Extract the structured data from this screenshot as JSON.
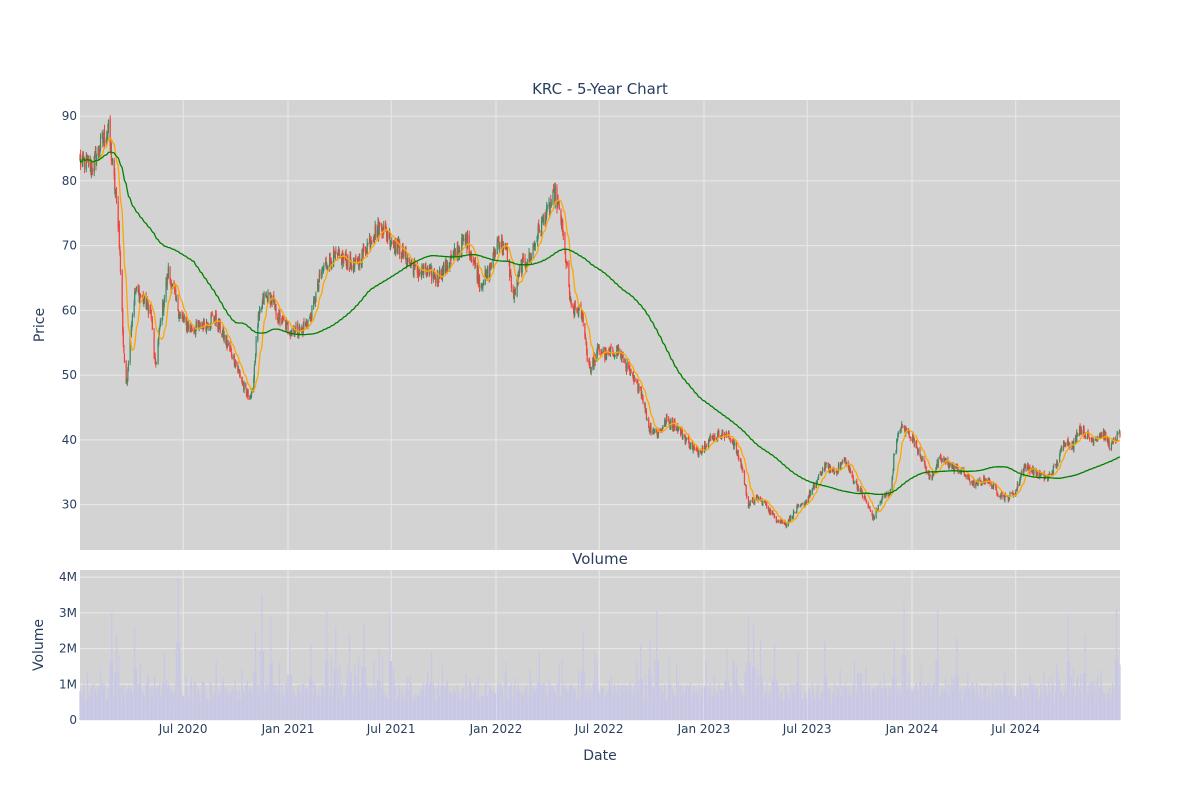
{
  "colors": {
    "plot_bg": "#d3d3d3",
    "grid": "#e9e9e9",
    "up": "#3d8a62",
    "down": "#f0453a",
    "ma_short": "#ffa500",
    "ma_long": "#008000",
    "volume": "#c8c8e6",
    "text": "#2a3f5f"
  },
  "chart_data": [
    {
      "type": "candlestick",
      "title": "KRC - 5-Year Chart",
      "xlabel": "",
      "ylabel": "Price",
      "ylim": [
        23,
        92.5
      ],
      "yticks": [
        30,
        40,
        50,
        60,
        70,
        80,
        90
      ],
      "grid": true,
      "legend": "none",
      "series": [
        {
          "type": "candlestick",
          "close_anchors": [
            [
              "2020-01-02",
              83.0
            ],
            [
              "2020-01-25",
              82.5
            ],
            [
              "2020-02-10",
              86.0
            ],
            [
              "2020-02-21",
              88.0
            ],
            [
              "2020-03-02",
              80.0
            ],
            [
              "2020-03-10",
              73.0
            ],
            [
              "2020-03-18",
              55.0
            ],
            [
              "2020-03-23",
              48.0
            ],
            [
              "2020-04-01",
              58.0
            ],
            [
              "2020-04-08",
              63.0
            ],
            [
              "2020-04-20",
              62.0
            ],
            [
              "2020-05-05",
              60.0
            ],
            [
              "2020-05-13",
              51.0
            ],
            [
              "2020-05-22",
              58.0
            ],
            [
              "2020-06-05",
              66.0
            ],
            [
              "2020-06-26",
              59.0
            ],
            [
              "2020-07-15",
              57.0
            ],
            [
              "2020-08-10",
              58.0
            ],
            [
              "2020-08-25",
              59.0
            ],
            [
              "2020-09-15",
              55.0
            ],
            [
              "2020-10-01",
              52.0
            ],
            [
              "2020-10-20",
              47.0
            ],
            [
              "2020-10-30",
              47.0
            ],
            [
              "2020-11-09",
              58.0
            ],
            [
              "2020-11-20",
              62.0
            ],
            [
              "2020-12-01",
              62.0
            ],
            [
              "2020-12-15",
              59.0
            ],
            [
              "2021-01-04",
              57.0
            ],
            [
              "2021-01-25",
              57.0
            ],
            [
              "2021-02-10",
              59.0
            ],
            [
              "2021-03-01",
              66.0
            ],
            [
              "2021-03-15",
              68.0
            ],
            [
              "2021-04-01",
              68.0
            ],
            [
              "2021-05-01",
              67.0
            ],
            [
              "2021-06-01",
              72.0
            ],
            [
              "2021-06-15",
              73.0
            ],
            [
              "2021-07-01",
              71.0
            ],
            [
              "2021-07-20",
              69.0
            ],
            [
              "2021-08-15",
              66.0
            ],
            [
              "2021-09-01",
              66.0
            ],
            [
              "2021-09-20",
              65.0
            ],
            [
              "2021-10-15",
              68.0
            ],
            [
              "2021-11-10",
              71.0
            ],
            [
              "2021-11-25",
              67.0
            ],
            [
              "2021-12-05",
              64.0
            ],
            [
              "2021-12-20",
              66.0
            ],
            [
              "2022-01-05",
              71.0
            ],
            [
              "2022-01-20",
              69.0
            ],
            [
              "2022-02-01",
              62.0
            ],
            [
              "2022-02-15",
              67.0
            ],
            [
              "2022-03-01",
              68.0
            ],
            [
              "2022-03-20",
              73.0
            ],
            [
              "2022-04-05",
              76.0
            ],
            [
              "2022-04-15",
              78.0
            ],
            [
              "2022-04-25",
              74.0
            ],
            [
              "2022-05-06",
              66.0
            ],
            [
              "2022-05-13",
              60.0
            ],
            [
              "2022-05-25",
              60.0
            ],
            [
              "2022-06-03",
              59.0
            ],
            [
              "2022-06-10",
              53.0
            ],
            [
              "2022-06-16",
              51.0
            ],
            [
              "2022-06-30",
              54.0
            ],
            [
              "2022-07-15",
              53.0
            ],
            [
              "2022-08-01",
              54.0
            ],
            [
              "2022-08-15",
              52.0
            ],
            [
              "2022-08-30",
              49.0
            ],
            [
              "2022-09-12",
              48.0
            ],
            [
              "2022-09-26",
              42.0
            ],
            [
              "2022-10-12",
              41.0
            ],
            [
              "2022-10-28",
              43.0
            ],
            [
              "2022-11-15",
              42.0
            ],
            [
              "2022-12-01",
              40.0
            ],
            [
              "2022-12-20",
              38.0
            ],
            [
              "2023-01-10",
              40.0
            ],
            [
              "2023-02-01",
              41.0
            ],
            [
              "2023-02-20",
              40.0
            ],
            [
              "2023-03-08",
              36.0
            ],
            [
              "2023-03-20",
              30.0
            ],
            [
              "2023-04-05",
              31.0
            ],
            [
              "2023-04-20",
              30.0
            ],
            [
              "2023-05-05",
              28.0
            ],
            [
              "2023-05-25",
              27.0
            ],
            [
              "2023-06-10",
              29.0
            ],
            [
              "2023-06-25",
              30.0
            ],
            [
              "2023-07-15",
              33.0
            ],
            [
              "2023-08-01",
              36.0
            ],
            [
              "2023-08-20",
              35.0
            ],
            [
              "2023-09-05",
              37.0
            ],
            [
              "2023-09-20",
              34.0
            ],
            [
              "2023-10-10",
              31.0
            ],
            [
              "2023-10-25",
              28.0
            ],
            [
              "2023-11-10",
              31.0
            ],
            [
              "2023-11-25",
              32.0
            ],
            [
              "2023-12-01",
              38.0
            ],
            [
              "2023-12-12",
              42.0
            ],
            [
              "2023-12-28",
              41.0
            ],
            [
              "2024-01-15",
              38.0
            ],
            [
              "2024-02-01",
              34.0
            ],
            [
              "2024-02-20",
              37.0
            ],
            [
              "2024-03-10",
              36.0
            ],
            [
              "2024-03-30",
              35.0
            ],
            [
              "2024-04-20",
              33.0
            ],
            [
              "2024-05-10",
              34.0
            ],
            [
              "2024-05-30",
              32.0
            ],
            [
              "2024-06-15",
              31.0
            ],
            [
              "2024-07-01",
              32.0
            ],
            [
              "2024-07-15",
              36.0
            ],
            [
              "2024-08-05",
              35.0
            ],
            [
              "2024-08-25",
              34.0
            ],
            [
              "2024-09-10",
              36.0
            ],
            [
              "2024-09-25",
              40.0
            ],
            [
              "2024-10-10",
              39.0
            ],
            [
              "2024-10-20",
              42.0
            ],
            [
              "2024-11-10",
              40.0
            ],
            [
              "2024-12-01",
              41.0
            ],
            [
              "2024-12-15",
              39.0
            ],
            [
              "2024-12-31",
              41.0
            ]
          ]
        },
        {
          "type": "line",
          "window_days": 20,
          "color": "#ffa500"
        },
        {
          "type": "line",
          "window_days": 200,
          "color": "#008000"
        }
      ]
    },
    {
      "type": "bar",
      "title": "Volume",
      "xlabel": "Date",
      "ylabel": "Volume",
      "ylim": [
        0,
        4200000
      ],
      "ytick_labels": [
        "0",
        "1M",
        "2M",
        "3M",
        "4M"
      ],
      "yticks": [
        0,
        1000000,
        2000000,
        3000000,
        4000000
      ],
      "grid": true,
      "x_tick_labels": [
        [
          "2020-07-01",
          "Jul 2020"
        ],
        [
          "2021-01-01",
          "Jan 2021"
        ],
        [
          "2021-07-01",
          "Jul 2021"
        ],
        [
          "2022-01-01",
          "Jan 2022"
        ],
        [
          "2022-07-01",
          "Jul 2022"
        ],
        [
          "2023-01-01",
          "Jan 2023"
        ],
        [
          "2023-07-01",
          "Jul 2023"
        ],
        [
          "2024-01-01",
          "Jan 2024"
        ],
        [
          "2024-07-01",
          "Jul 2024"
        ]
      ],
      "x_range": [
        "2020-01-02",
        "2024-12-31"
      ],
      "volume_spikes": [
        [
          "2020-02-27",
          3000000
        ],
        [
          "2020-03-06",
          2400000
        ],
        [
          "2020-04-07",
          2600000
        ],
        [
          "2020-06-22",
          3950000
        ],
        [
          "2020-05-29",
          1900000
        ],
        [
          "2020-11-05",
          2500000
        ],
        [
          "2020-11-16",
          3500000
        ],
        [
          "2020-12-02",
          2900000
        ],
        [
          "2021-01-04",
          2300000
        ],
        [
          "2021-02-10",
          2100000
        ],
        [
          "2021-03-10",
          3050000
        ],
        [
          "2021-03-26",
          2600000
        ],
        [
          "2021-04-19",
          2400000
        ],
        [
          "2021-05-14",
          2700000
        ],
        [
          "2021-06-10",
          2000000
        ],
        [
          "2021-06-29",
          3000000
        ],
        [
          "2021-09-10",
          1900000
        ],
        [
          "2022-03-18",
          1900000
        ],
        [
          "2022-06-03",
          2500000
        ],
        [
          "2022-06-24",
          1900000
        ],
        [
          "2022-09-12",
          2100000
        ],
        [
          "2022-09-28",
          2300000
        ],
        [
          "2022-10-10",
          3050000
        ],
        [
          "2022-11-01",
          1800000
        ],
        [
          "2023-01-05",
          1700000
        ],
        [
          "2023-02-10",
          2000000
        ],
        [
          "2023-03-20",
          2900000
        ],
        [
          "2023-03-29",
          2700000
        ],
        [
          "2023-04-10",
          2200000
        ],
        [
          "2023-05-05",
          2100000
        ],
        [
          "2023-06-15",
          1900000
        ],
        [
          "2023-08-01",
          2200000
        ],
        [
          "2023-10-01",
          2400000
        ],
        [
          "2023-12-01",
          2200000
        ],
        [
          "2023-12-18",
          3300000
        ],
        [
          "2024-02-15",
          3050000
        ],
        [
          "2024-03-20",
          2300000
        ],
        [
          "2024-10-01",
          2950000
        ],
        [
          "2024-10-31",
          2400000
        ],
        [
          "2024-12-25",
          3100000
        ]
      ]
    }
  ]
}
